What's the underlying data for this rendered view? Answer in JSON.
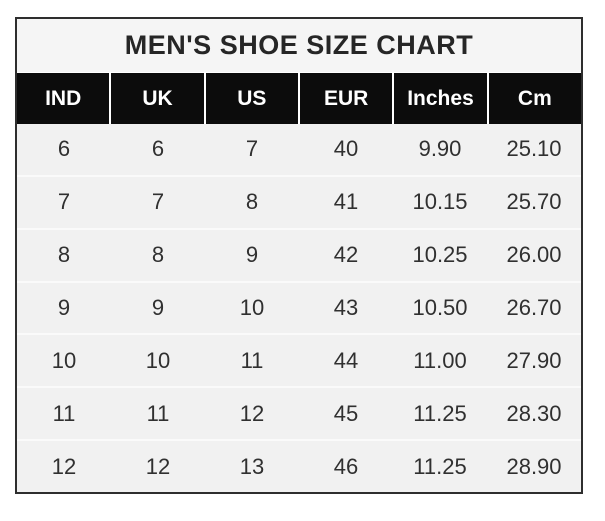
{
  "title": "MEN'S SHOE SIZE CHART",
  "table": {
    "headers": [
      "IND",
      "UK",
      "US",
      "EUR",
      "Inches",
      "Cm"
    ],
    "rows": [
      [
        "6",
        "6",
        "7",
        "40",
        "9.90",
        "25.10"
      ],
      [
        "7",
        "7",
        "8",
        "41",
        "10.15",
        "25.70"
      ],
      [
        "8",
        "8",
        "9",
        "42",
        "10.25",
        "26.00"
      ],
      [
        "9",
        "9",
        "10",
        "43",
        "10.50",
        "26.70"
      ],
      [
        "10",
        "10",
        "11",
        "44",
        "11.00",
        "27.90"
      ],
      [
        "11",
        "11",
        "12",
        "45",
        "11.25",
        "28.30"
      ],
      [
        "12",
        "12",
        "13",
        "46",
        "11.25",
        "28.90"
      ]
    ]
  },
  "colors": {
    "page_bg": "#ffffff",
    "frame_border": "#2e2e2e",
    "title_bg": "#f5f5f5",
    "title_text": "#262626",
    "header_bg": "#0c0c0c",
    "header_text": "#ffffff",
    "body_bg": "#f1f1f1",
    "body_text": "#303030"
  },
  "chart_data": {
    "type": "table",
    "title": "MEN'S SHOE SIZE CHART",
    "columns": [
      "IND",
      "UK",
      "US",
      "EUR",
      "Inches",
      "Cm"
    ],
    "rows": [
      [
        6,
        6,
        7,
        40,
        9.9,
        25.1
      ],
      [
        7,
        7,
        8,
        41,
        10.15,
        25.7
      ],
      [
        8,
        8,
        9,
        42,
        10.25,
        26.0
      ],
      [
        9,
        9,
        10,
        43,
        10.5,
        26.7
      ],
      [
        10,
        10,
        11,
        44,
        11.0,
        27.9
      ],
      [
        11,
        11,
        12,
        45,
        11.25,
        28.3
      ],
      [
        12,
        12,
        13,
        46,
        11.25,
        28.9
      ]
    ]
  }
}
